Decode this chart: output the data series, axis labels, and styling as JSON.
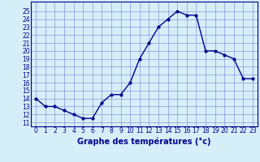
{
  "hours": [
    0,
    1,
    2,
    3,
    4,
    5,
    6,
    7,
    8,
    9,
    10,
    11,
    12,
    13,
    14,
    15,
    16,
    17,
    18,
    19,
    20,
    21,
    22,
    23
  ],
  "temperatures": [
    14,
    13,
    13,
    12.5,
    12,
    11.5,
    11.5,
    13.5,
    14.5,
    14.5,
    16,
    19,
    21,
    23,
    24,
    25,
    24.5,
    24.5,
    20,
    20,
    19.5,
    19,
    16.5,
    16.5
  ],
  "line_color": "#00008B",
  "marker": "o",
  "marker_size": 2,
  "bg_color": "#d6eef8",
  "grid_color": "#6666cc",
  "xlabel": "Graphe des températures (°c)",
  "xlabel_fontsize": 7,
  "ylabel_ticks": [
    11,
    12,
    13,
    14,
    15,
    16,
    17,
    18,
    19,
    20,
    21,
    22,
    23,
    24,
    25
  ],
  "xlim": [
    -0.5,
    23.5
  ],
  "ylim": [
    10.5,
    26.2
  ],
  "xtick_labels": [
    "0",
    "1",
    "2",
    "3",
    "4",
    "5",
    "6",
    "7",
    "8",
    "9",
    "10",
    "11",
    "12",
    "13",
    "14",
    "15",
    "16",
    "17",
    "18",
    "19",
    "20",
    "21",
    "22",
    "23"
  ],
  "tick_fontsize": 5.5,
  "line_width": 1.0
}
